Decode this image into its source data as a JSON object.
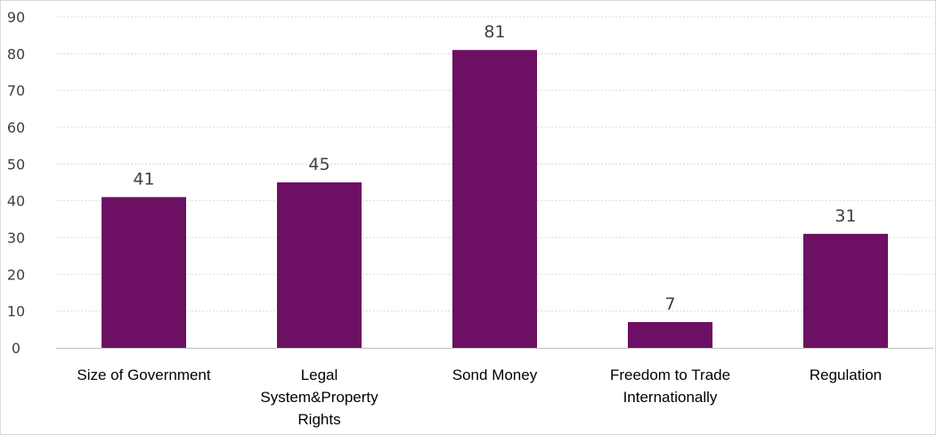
{
  "chart_data": {
    "type": "bar",
    "categories": [
      "Size of Government",
      "Legal System&Property Rights",
      "Sond Money",
      "Freedom to Trade Internationally",
      "Regulation"
    ],
    "category_lines": [
      [
        "Size of Government"
      ],
      [
        "Legal",
        "System&Property",
        "Rights"
      ],
      [
        "Sond Money"
      ],
      [
        "Freedom to Trade",
        "Internationally"
      ],
      [
        "Regulation"
      ]
    ],
    "values": [
      41,
      45,
      81,
      7,
      31
    ],
    "data_labels": [
      "41",
      "45",
      "81",
      "7",
      "31"
    ],
    "title": "",
    "xlabel": "",
    "ylabel": "",
    "ylim": [
      0,
      90
    ],
    "yticks": [
      0,
      10,
      20,
      30,
      40,
      50,
      60,
      70,
      80,
      90
    ],
    "grid": true,
    "legend": "none",
    "bar_color": "#6d0f63"
  }
}
